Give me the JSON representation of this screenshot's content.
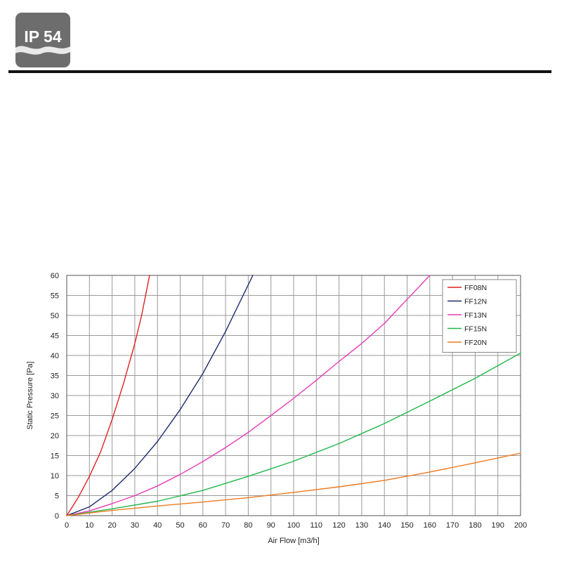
{
  "header": {
    "badge_text": "IP 54"
  },
  "chart_data": {
    "type": "line",
    "xlabel": "Air Flow [m3/h]",
    "ylabel": "Static Pressure [Pa]",
    "xlim": [
      0,
      200
    ],
    "ylim": [
      0,
      60
    ],
    "x_ticks": [
      0,
      10,
      20,
      30,
      40,
      50,
      60,
      70,
      80,
      90,
      100,
      110,
      120,
      130,
      140,
      150,
      160,
      170,
      180,
      190,
      200
    ],
    "y_ticks": [
      0,
      5,
      10,
      15,
      20,
      25,
      30,
      35,
      40,
      45,
      50,
      55,
      60
    ],
    "grid": true,
    "legend_position": "top-right",
    "series": [
      {
        "name": "FF08N",
        "color": "#e02020",
        "points": [
          [
            0,
            0
          ],
          [
            5,
            4.5
          ],
          [
            10,
            9.8
          ],
          [
            15,
            16
          ],
          [
            20,
            24
          ],
          [
            25,
            33
          ],
          [
            30,
            43
          ],
          [
            33,
            50
          ],
          [
            36.5,
            60
          ]
        ]
      },
      {
        "name": "FF12N",
        "color": "#1c2a6b",
        "points": [
          [
            0,
            0
          ],
          [
            10,
            2.2
          ],
          [
            20,
            6.3
          ],
          [
            30,
            11.8
          ],
          [
            40,
            18.5
          ],
          [
            50,
            26.5
          ],
          [
            60,
            35.5
          ],
          [
            70,
            46
          ],
          [
            82,
            60
          ]
        ]
      },
      {
        "name": "FF13N",
        "color": "#e73ab8",
        "points": [
          [
            0,
            0
          ],
          [
            10,
            1.2
          ],
          [
            20,
            3
          ],
          [
            30,
            5
          ],
          [
            40,
            7.4
          ],
          [
            50,
            10.3
          ],
          [
            60,
            13.5
          ],
          [
            70,
            17
          ],
          [
            80,
            20.8
          ],
          [
            90,
            25
          ],
          [
            100,
            29.3
          ],
          [
            110,
            33.8
          ],
          [
            120,
            38.5
          ],
          [
            130,
            43
          ],
          [
            140,
            48
          ],
          [
            150,
            54
          ],
          [
            160,
            60
          ]
        ]
      },
      {
        "name": "FF15N",
        "color": "#1fb84c",
        "points": [
          [
            0,
            0
          ],
          [
            20,
            1.7
          ],
          [
            40,
            3.6
          ],
          [
            60,
            6.3
          ],
          [
            80,
            9.8
          ],
          [
            100,
            13.6
          ],
          [
            120,
            18
          ],
          [
            140,
            23
          ],
          [
            160,
            28.6
          ],
          [
            180,
            34.3
          ],
          [
            200,
            40.6
          ]
        ]
      },
      {
        "name": "FF20N",
        "color": "#ee7a1f",
        "points": [
          [
            0,
            0
          ],
          [
            20,
            1.3
          ],
          [
            40,
            2.4
          ],
          [
            60,
            3.4
          ],
          [
            80,
            4.5
          ],
          [
            100,
            5.8
          ],
          [
            120,
            7.2
          ],
          [
            140,
            8.8
          ],
          [
            160,
            10.9
          ],
          [
            180,
            13.2
          ],
          [
            200,
            15.6
          ]
        ]
      }
    ]
  }
}
